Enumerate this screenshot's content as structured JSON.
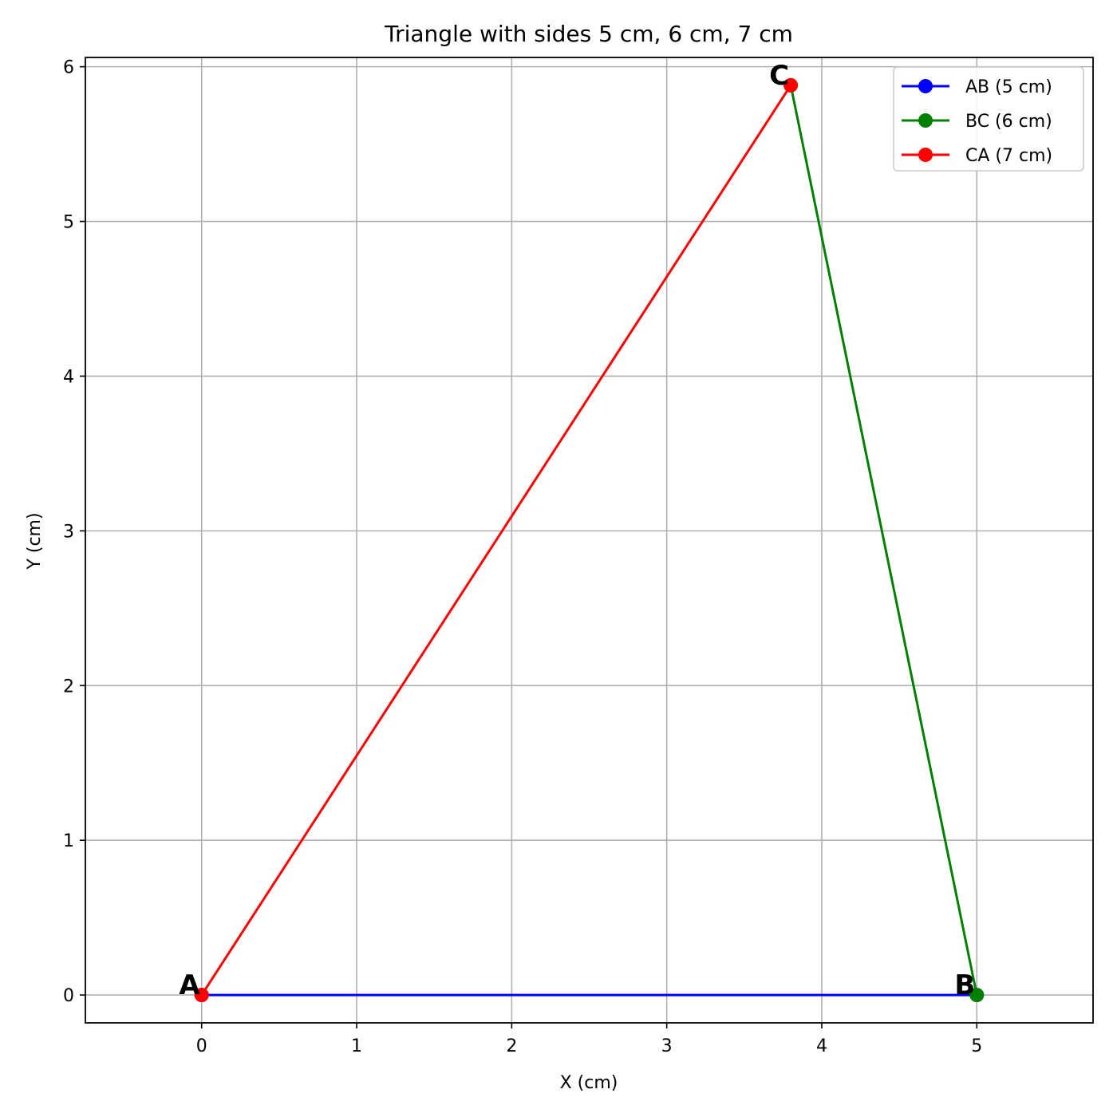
{
  "chart_data": {
    "type": "line",
    "title": "Triangle with sides 5 cm, 6 cm, 7 cm",
    "xlabel": "X (cm)",
    "ylabel": "Y (cm)",
    "xlim": [
      -0.75,
      5.75
    ],
    "ylim": [
      -0.18,
      6.06
    ],
    "xticks": [
      0,
      1,
      2,
      3,
      4,
      5
    ],
    "yticks": [
      0,
      1,
      2,
      3,
      4,
      5,
      6
    ],
    "grid": true,
    "legend_position": "top-right",
    "vertices": [
      {
        "label": "A",
        "x": 0,
        "y": 0
      },
      {
        "label": "B",
        "x": 5,
        "y": 0
      },
      {
        "label": "C",
        "x": 3.8,
        "y": 5.88
      }
    ],
    "series": [
      {
        "name": "AB (5 cm)",
        "color": "#0000ff",
        "x": [
          0,
          5
        ],
        "y": [
          0,
          0
        ]
      },
      {
        "name": "BC (6 cm)",
        "color": "#008000",
        "x": [
          5,
          3.8
        ],
        "y": [
          0,
          5.88
        ]
      },
      {
        "name": "CA (7 cm)",
        "color": "#ff0000",
        "x": [
          3.8,
          0
        ],
        "y": [
          5.88,
          0
        ]
      }
    ]
  }
}
